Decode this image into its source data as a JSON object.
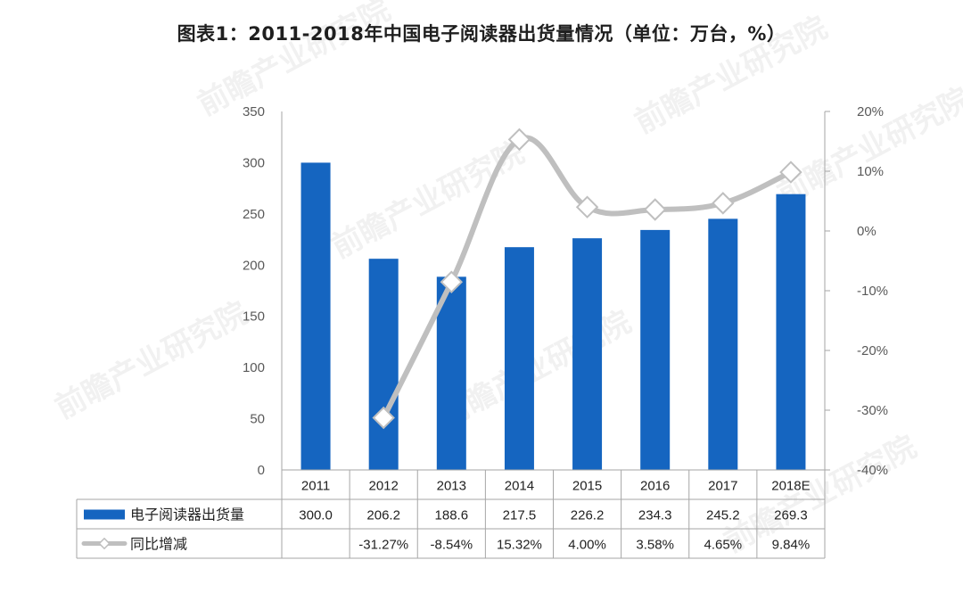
{
  "title": "图表1：2011-2018年中国电子阅读器出货量情况（单位：万台，%）",
  "watermark": "前瞻产业研究院",
  "colors": {
    "bar": "#1565c0",
    "line": "#bfbfbf",
    "axis": "#a6a6a6"
  },
  "chart_data": {
    "type": "bar",
    "categories": [
      "2011",
      "2012",
      "2013",
      "2014",
      "2015",
      "2016",
      "2017",
      "2018E"
    ],
    "series": [
      {
        "name": "电子阅读器出货量",
        "type": "bar",
        "axis": "left",
        "values": [
          300.0,
          206.2,
          188.6,
          217.5,
          226.2,
          234.3,
          245.2,
          269.3
        ],
        "labels": [
          "300.0",
          "206.2",
          "188.6",
          "217.5",
          "226.2",
          "234.3",
          "245.2",
          "269.3"
        ]
      },
      {
        "name": "同比增减",
        "type": "line",
        "axis": "right",
        "values": [
          null,
          -31.27,
          -8.54,
          15.32,
          4.0,
          3.58,
          4.65,
          9.84
        ],
        "labels": [
          "",
          "-31.27%",
          "-8.54%",
          "15.32%",
          "4.00%",
          "3.58%",
          "4.65%",
          "9.84%"
        ]
      }
    ],
    "y_left": {
      "ylim": [
        0,
        350
      ],
      "ticks": [
        0,
        50,
        100,
        150,
        200,
        250,
        300,
        350
      ]
    },
    "y_right": {
      "ylim": [
        -40,
        20
      ],
      "ticks": [
        "-40%",
        "-30%",
        "-20%",
        "-10%",
        "0%",
        "10%",
        "20%"
      ]
    },
    "grid": false,
    "legend": "data-table-below"
  }
}
